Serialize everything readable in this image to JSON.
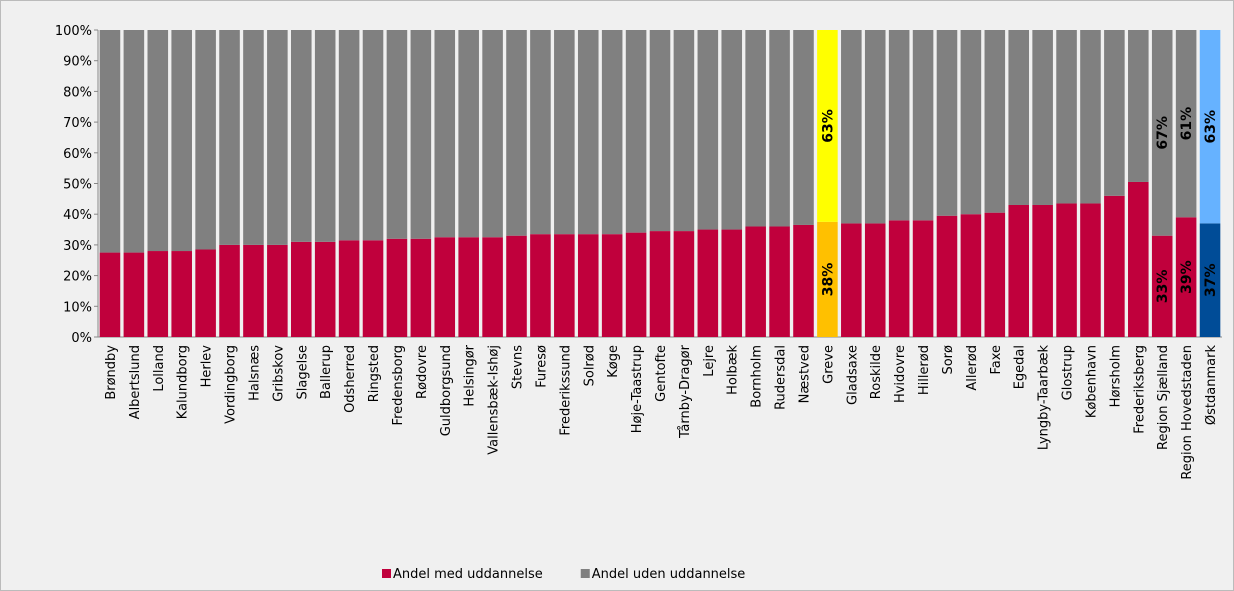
{
  "chart_data": {
    "type": "stacked_bar",
    "categories": [
      "Brøndby",
      "Albertslund",
      "Lolland",
      "Kalundborg",
      "Herlev",
      "Vordingborg",
      "Halsnæs",
      "Gribskov",
      "Slagelse",
      "Ballerup",
      "Odsherred",
      "Ringsted",
      "Fredensborg",
      "Rødovre",
      "Guldborgsund",
      "Helsingør",
      "Vallensbæk-Ishøj",
      "Stevns",
      "Furesø",
      "Frederikssund",
      "Solrød",
      "Køge",
      "Høje-Taastrup",
      "Gentofte",
      "Tårnby-Dragør",
      "Lejre",
      "Holbæk",
      "Bornholm",
      "Rudersdal",
      "Næstved",
      "Greve",
      "Gladsaxe",
      "Roskilde",
      "Hvidovre",
      "Hillerød",
      "Sorø",
      "Allerød",
      "Faxe",
      "Egedal",
      "Lyngby-Taarbæk",
      "Glostrup",
      "København",
      "Hørsholm",
      "Frederiksberg",
      "Region Sjælland",
      "Region Hovedstaden",
      "Østdanmark"
    ],
    "series": [
      {
        "name": "Andel med uddannelse",
        "color": "#c0003c",
        "values": [
          27.5,
          27.5,
          28,
          28,
          28.5,
          30,
          30,
          30,
          31,
          31,
          31.5,
          31.5,
          32,
          32,
          32.5,
          32.5,
          32.5,
          33,
          33.5,
          33.5,
          33.5,
          33.5,
          34,
          34.5,
          34.5,
          35,
          35,
          36,
          36,
          36.5,
          37.5,
          37,
          37,
          38,
          38,
          39.5,
          40,
          40.5,
          43,
          43,
          43.5,
          43.5,
          46,
          50.5,
          33,
          39,
          37
        ],
        "colors": [
          "#c0003c",
          "#c0003c",
          "#c0003c",
          "#c0003c",
          "#c0003c",
          "#c0003c",
          "#c0003c",
          "#c0003c",
          "#c0003c",
          "#c0003c",
          "#c0003c",
          "#c0003c",
          "#c0003c",
          "#c0003c",
          "#c0003c",
          "#c0003c",
          "#c0003c",
          "#c0003c",
          "#c0003c",
          "#c0003c",
          "#c0003c",
          "#c0003c",
          "#c0003c",
          "#c0003c",
          "#c0003c",
          "#c0003c",
          "#c0003c",
          "#c0003c",
          "#c0003c",
          "#c0003c",
          "#ffc000",
          "#c0003c",
          "#c0003c",
          "#c0003c",
          "#c0003c",
          "#c0003c",
          "#c0003c",
          "#c0003c",
          "#c0003c",
          "#c0003c",
          "#c0003c",
          "#c0003c",
          "#c0003c",
          "#c0003c",
          "#c0003c",
          "#c0003c",
          "#004c97"
        ],
        "value_labels": [
          null,
          null,
          null,
          null,
          null,
          null,
          null,
          null,
          null,
          null,
          null,
          null,
          null,
          null,
          null,
          null,
          null,
          null,
          null,
          null,
          null,
          null,
          null,
          null,
          null,
          null,
          null,
          null,
          null,
          null,
          "38%",
          null,
          null,
          null,
          null,
          null,
          null,
          null,
          null,
          null,
          null,
          null,
          null,
          null,
          "33%",
          "39%",
          "37%"
        ]
      },
      {
        "name": "Andel uden uddannelse",
        "color": "#808080",
        "values": [
          72.5,
          72.5,
          72,
          72,
          71.5,
          70,
          70,
          70,
          69,
          69,
          68.5,
          68.5,
          68,
          68,
          67.5,
          67.5,
          67.5,
          67,
          66.5,
          66.5,
          66.5,
          66.5,
          66,
          65.5,
          65.5,
          65,
          65,
          64,
          64,
          63.5,
          62.5,
          63,
          63,
          62,
          62,
          60.5,
          60,
          59.5,
          57,
          57,
          56.5,
          56.5,
          54,
          49.5,
          67,
          61,
          63
        ],
        "colors": [
          "#808080",
          "#808080",
          "#808080",
          "#808080",
          "#808080",
          "#808080",
          "#808080",
          "#808080",
          "#808080",
          "#808080",
          "#808080",
          "#808080",
          "#808080",
          "#808080",
          "#808080",
          "#808080",
          "#808080",
          "#808080",
          "#808080",
          "#808080",
          "#808080",
          "#808080",
          "#808080",
          "#808080",
          "#808080",
          "#808080",
          "#808080",
          "#808080",
          "#808080",
          "#808080",
          "#ffff00",
          "#808080",
          "#808080",
          "#808080",
          "#808080",
          "#808080",
          "#808080",
          "#808080",
          "#808080",
          "#808080",
          "#808080",
          "#808080",
          "#808080",
          "#808080",
          "#808080",
          "#808080",
          "#66b2ff"
        ],
        "value_labels": [
          null,
          null,
          null,
          null,
          null,
          null,
          null,
          null,
          null,
          null,
          null,
          null,
          null,
          null,
          null,
          null,
          null,
          null,
          null,
          null,
          null,
          null,
          null,
          null,
          null,
          null,
          null,
          null,
          null,
          null,
          "63%",
          null,
          null,
          null,
          null,
          null,
          null,
          null,
          null,
          null,
          null,
          null,
          null,
          null,
          "67%",
          "61%",
          "63%"
        ]
      }
    ],
    "ylim": [
      0,
      100
    ],
    "yticks": [
      {
        "value": 0,
        "label": "0%"
      },
      {
        "value": 10,
        "label": "10%"
      },
      {
        "value": 20,
        "label": "20%"
      },
      {
        "value": 30,
        "label": "30%"
      },
      {
        "value": 40,
        "label": "40%"
      },
      {
        "value": 50,
        "label": "50%"
      },
      {
        "value": 60,
        "label": "60%"
      },
      {
        "value": 70,
        "label": "70%"
      },
      {
        "value": 80,
        "label": "80%"
      },
      {
        "value": 90,
        "label": "90%"
      },
      {
        "value": 100,
        "label": "100%"
      }
    ],
    "legend": "bottom"
  }
}
